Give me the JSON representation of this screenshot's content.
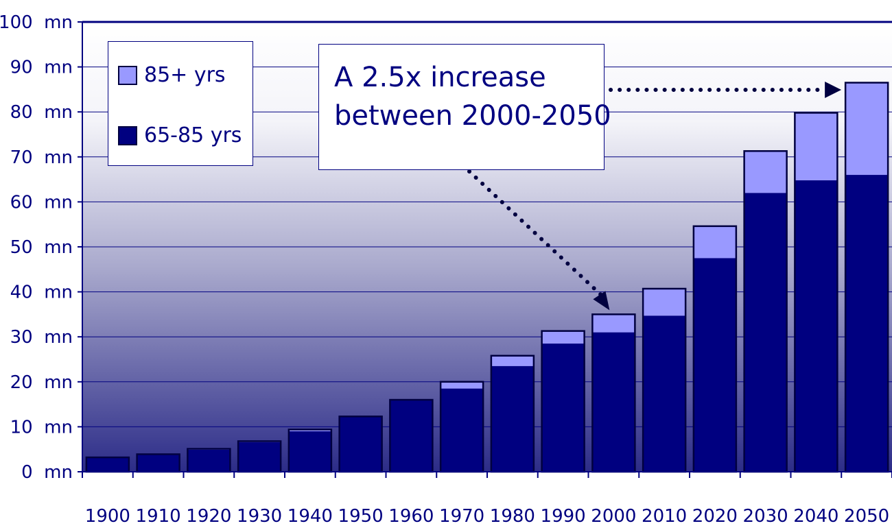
{
  "chart_data": {
    "type": "bar",
    "stacked": true,
    "categories": [
      "1900",
      "1910",
      "1920",
      "1930",
      "1940",
      "1950",
      "1960",
      "1970",
      "1980",
      "1990",
      "2000",
      "2010",
      "2020",
      "2030",
      "2040",
      "2050"
    ],
    "series": [
      {
        "name": "65-85 yrs",
        "color": "#000080",
        "values": [
          3.1,
          3.8,
          4.9,
          6.6,
          9.0,
          12.3,
          16.0,
          18.5,
          23.5,
          28.5,
          31.0,
          34.7,
          47.5,
          62.0,
          64.8,
          66.0
        ]
      },
      {
        "name": "85+ yrs",
        "color": "#9999ff",
        "values": [
          0.1,
          0.1,
          0.2,
          0.2,
          0.4,
          0.0,
          0.0,
          1.5,
          2.3,
          2.8,
          4.0,
          6.0,
          7.1,
          9.3,
          15.0,
          20.5
        ]
      }
    ],
    "ylim": [
      0,
      100
    ],
    "yticks": [
      "0  mn",
      "10  mn",
      "20  mn",
      "30  mn",
      "40  mn",
      "50  mn",
      "60  mn",
      "70  mn",
      "80  mn",
      "90  mn",
      "100  mn"
    ],
    "grid": true,
    "legend": {
      "position": "top-left",
      "entries": [
        "85+  yrs",
        "65-85  yrs"
      ]
    },
    "annotation": {
      "lines": [
        "A  2.5x  increase",
        "between  2000-2050"
      ]
    }
  }
}
